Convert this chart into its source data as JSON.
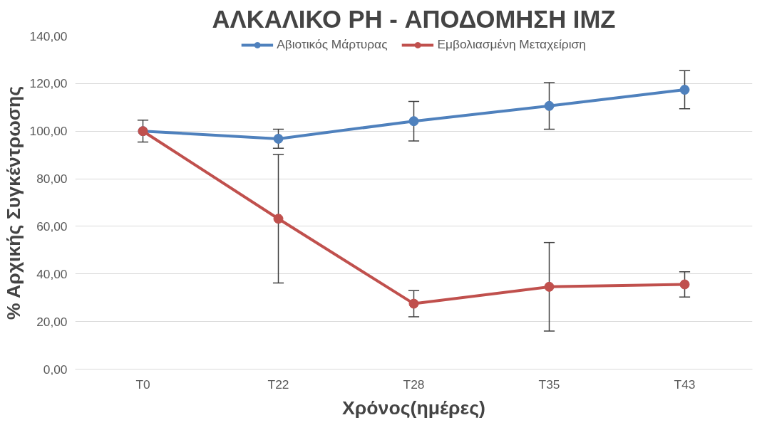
{
  "chart_data": {
    "type": "line",
    "title": "ΑΛΚΑΛΙΚΟ PH - ΑΠΟΔΟΜΗΣΗ IMZ",
    "xlabel": "Χρόνος(ημέρες)",
    "ylabel": "% Αρχικής Συγκέντρωσης",
    "categories": [
      "T0",
      "T22",
      "T28",
      "T35",
      "T43"
    ],
    "series": [
      {
        "name": "Αβιοτικός Μάρτυρας",
        "color": "#4f81bd",
        "values": [
          100,
          96.8,
          104.2,
          110.6,
          117.4
        ],
        "errors": [
          4.6,
          4,
          8.3,
          9.8,
          8
        ]
      },
      {
        "name": "Εμβολιασμένη Μεταχείριση",
        "color": "#c0504d",
        "values": [
          100,
          63.2,
          27.5,
          34.6,
          35.6
        ],
        "errors": [
          null,
          27,
          5.5,
          18.6,
          5.3
        ]
      }
    ],
    "ylim": [
      0,
      140
    ],
    "yticks": [
      {
        "value": 0,
        "label": "0,00"
      },
      {
        "value": 20,
        "label": "20,00"
      },
      {
        "value": 40,
        "label": "40,00"
      },
      {
        "value": 60,
        "label": "60,00"
      },
      {
        "value": 80,
        "label": "80,00"
      },
      {
        "value": 100,
        "label": "100,00"
      },
      {
        "value": 120,
        "label": "120,00"
      },
      {
        "value": 140,
        "label": "140,00"
      }
    ],
    "grid": "y",
    "legend": "top",
    "marker": "circle",
    "line_style": "solid"
  }
}
